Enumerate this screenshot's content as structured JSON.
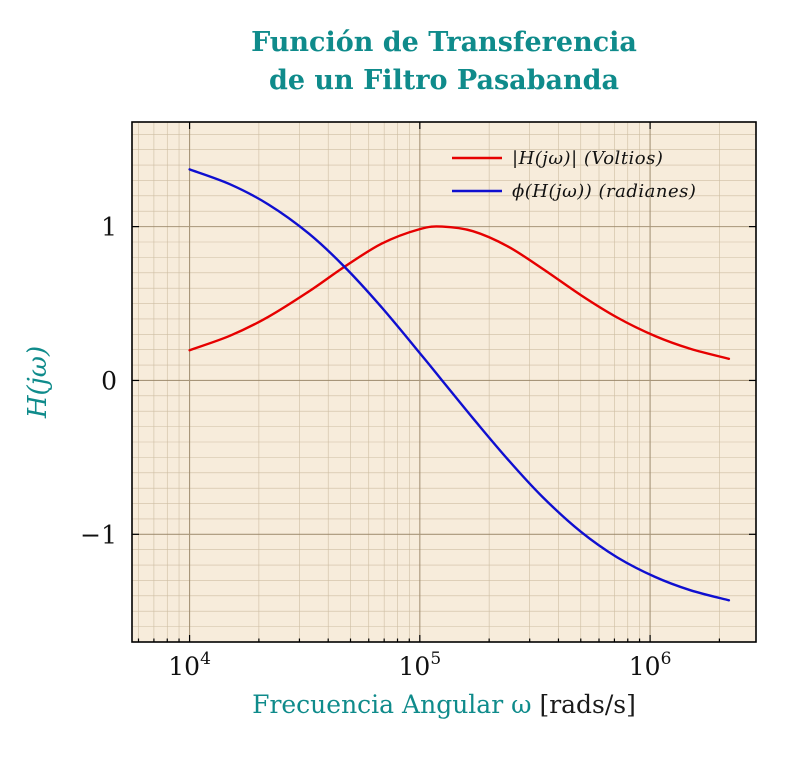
{
  "chart_data": {
    "type": "line",
    "title": "Función de Transferencia de un Filtro Pasabanda",
    "title_line1": "Función de Transferencia",
    "title_line2": "de un Filtro Pasabanda",
    "xlabel": "Frecuencia Angular ω ",
    "xlabel_unit": "[rads/s]",
    "ylabel": "H(jω)",
    "x_scale": "log",
    "xlim": [
      5623,
      2884000
    ],
    "ylim": [
      -1.7,
      1.68
    ],
    "grid": "both",
    "legend_position": "upper right",
    "accent_color": "#0f8b8b",
    "plot_bg": "#f7ecdb",
    "frame_color": "#000000",
    "grid_minor_color": "#c3b295",
    "grid_major_color": "#9a8668",
    "x_ticks": [
      {
        "value": 10000,
        "base": "10",
        "exp": "4"
      },
      {
        "value": 100000,
        "base": "10",
        "exp": "5"
      },
      {
        "value": 1000000,
        "base": "10",
        "exp": "6"
      }
    ],
    "y_ticks": [
      {
        "value": 1,
        "label": "1"
      },
      {
        "value": 0,
        "label": "0"
      },
      {
        "value": -1,
        "label": "−1"
      }
    ],
    "legend": [
      {
        "label": "|H(jω)| (Voltios)",
        "color": "#e60000"
      },
      {
        "label": "ϕ(H(jω)) (radianes)",
        "color": "#0f0fd0"
      }
    ],
    "x": [
      10000,
      15000,
      22000,
      33000,
      47000,
      68000,
      100000,
      125000,
      170000,
      240000,
      340000,
      500000,
      720000,
      1050000,
      1500000,
      2200000
    ],
    "series": [
      {
        "name": "magnitude |H(jω)| (Voltios)",
        "color": "#e60000",
        "values": [
          0.197,
          0.291,
          0.414,
          0.579,
          0.738,
          0.888,
          0.984,
          1.0,
          0.97,
          0.873,
          0.728,
          0.555,
          0.409,
          0.289,
          0.205,
          0.141
        ]
      },
      {
        "name": "phase ϕ(H(jω)) (radianes)",
        "color": "#0f0fd0",
        "values": [
          1.372,
          1.275,
          1.144,
          0.954,
          0.74,
          0.478,
          0.178,
          0.0,
          -0.245,
          -0.51,
          -0.755,
          -0.983,
          -1.15,
          -1.277,
          -1.364,
          -1.429
        ]
      }
    ]
  }
}
